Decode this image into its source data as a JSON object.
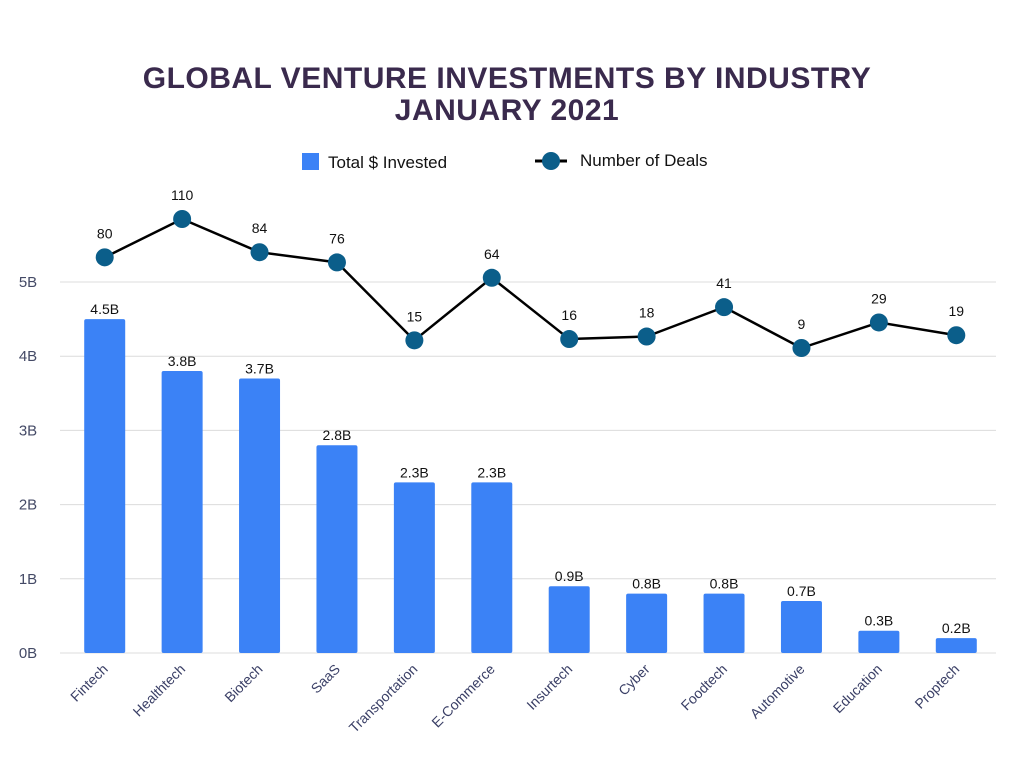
{
  "chart_data": {
    "type": "bar",
    "title": [
      "GLOBAL VENTURE INVESTMENTS BY INDUSTRY",
      "JANUARY 2021"
    ],
    "categories": [
      "Fintech",
      "Healthtech",
      "Biotech",
      "SaaS",
      "Transportation",
      "E-Commerce",
      "Insurtech",
      "Cyber",
      "Foodtech",
      "Automotive",
      "Education",
      "Proptech"
    ],
    "series": [
      {
        "name": "Total $ Invested",
        "type": "bar",
        "values": [
          4.5,
          3.8,
          3.7,
          2.8,
          2.3,
          2.3,
          0.9,
          0.8,
          0.8,
          0.7,
          0.3,
          0.2
        ],
        "labels": [
          "4.5B",
          "3.8B",
          "3.7B",
          "2.8B",
          "2.3B",
          "2.3B",
          "0.9B",
          "0.8B",
          "0.8B",
          "0.7B",
          "0.3B",
          "0.2B"
        ],
        "color": "#3b82f6"
      },
      {
        "name": "Number of Deals",
        "type": "line",
        "values": [
          80,
          110,
          84,
          76,
          15,
          64,
          16,
          18,
          41,
          9,
          29,
          19
        ],
        "labels": [
          "80",
          "110",
          "84",
          "76",
          "15",
          "64",
          "16",
          "18",
          "41",
          "9",
          "29",
          "19"
        ],
        "color": "#0b5e8a",
        "line_color": "#000000"
      }
    ],
    "yticks": [
      "0B",
      "1B",
      "2B",
      "3B",
      "4B",
      "5B"
    ],
    "ylim": [
      0,
      5
    ],
    "grid": true,
    "legend": "top-center",
    "xlabel": "",
    "ylabel": ""
  }
}
